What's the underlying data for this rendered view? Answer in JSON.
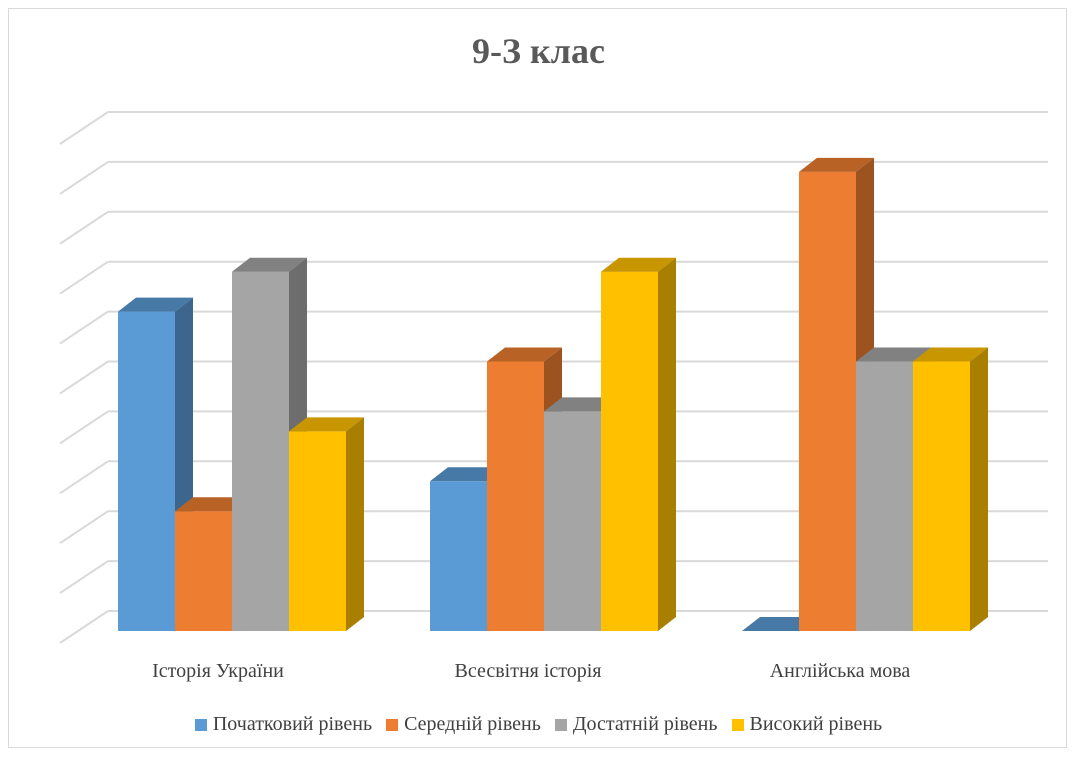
{
  "chart_data": {
    "type": "bar",
    "title": "9-З клас",
    "categories": [
      "Історія України",
      "Всесвітня історія",
      "Англійська мова"
    ],
    "series": [
      {
        "name": "Початковий рівень",
        "color": "#5B9BD5",
        "values": [
          32,
          15,
          0
        ]
      },
      {
        "name": "Середній рівень",
        "color": "#ED7D31",
        "values": [
          12,
          27,
          46
        ]
      },
      {
        "name": "Достатній рівень",
        "color": "#A5A5A5",
        "values": [
          36,
          22,
          27
        ]
      },
      {
        "name": "Високий рівень",
        "color": "#FFC000",
        "values": [
          20,
          36,
          27
        ]
      }
    ],
    "ylim": [
      0,
      52
    ],
    "grid": true,
    "legend_position": "bottom",
    "three_d": true
  }
}
